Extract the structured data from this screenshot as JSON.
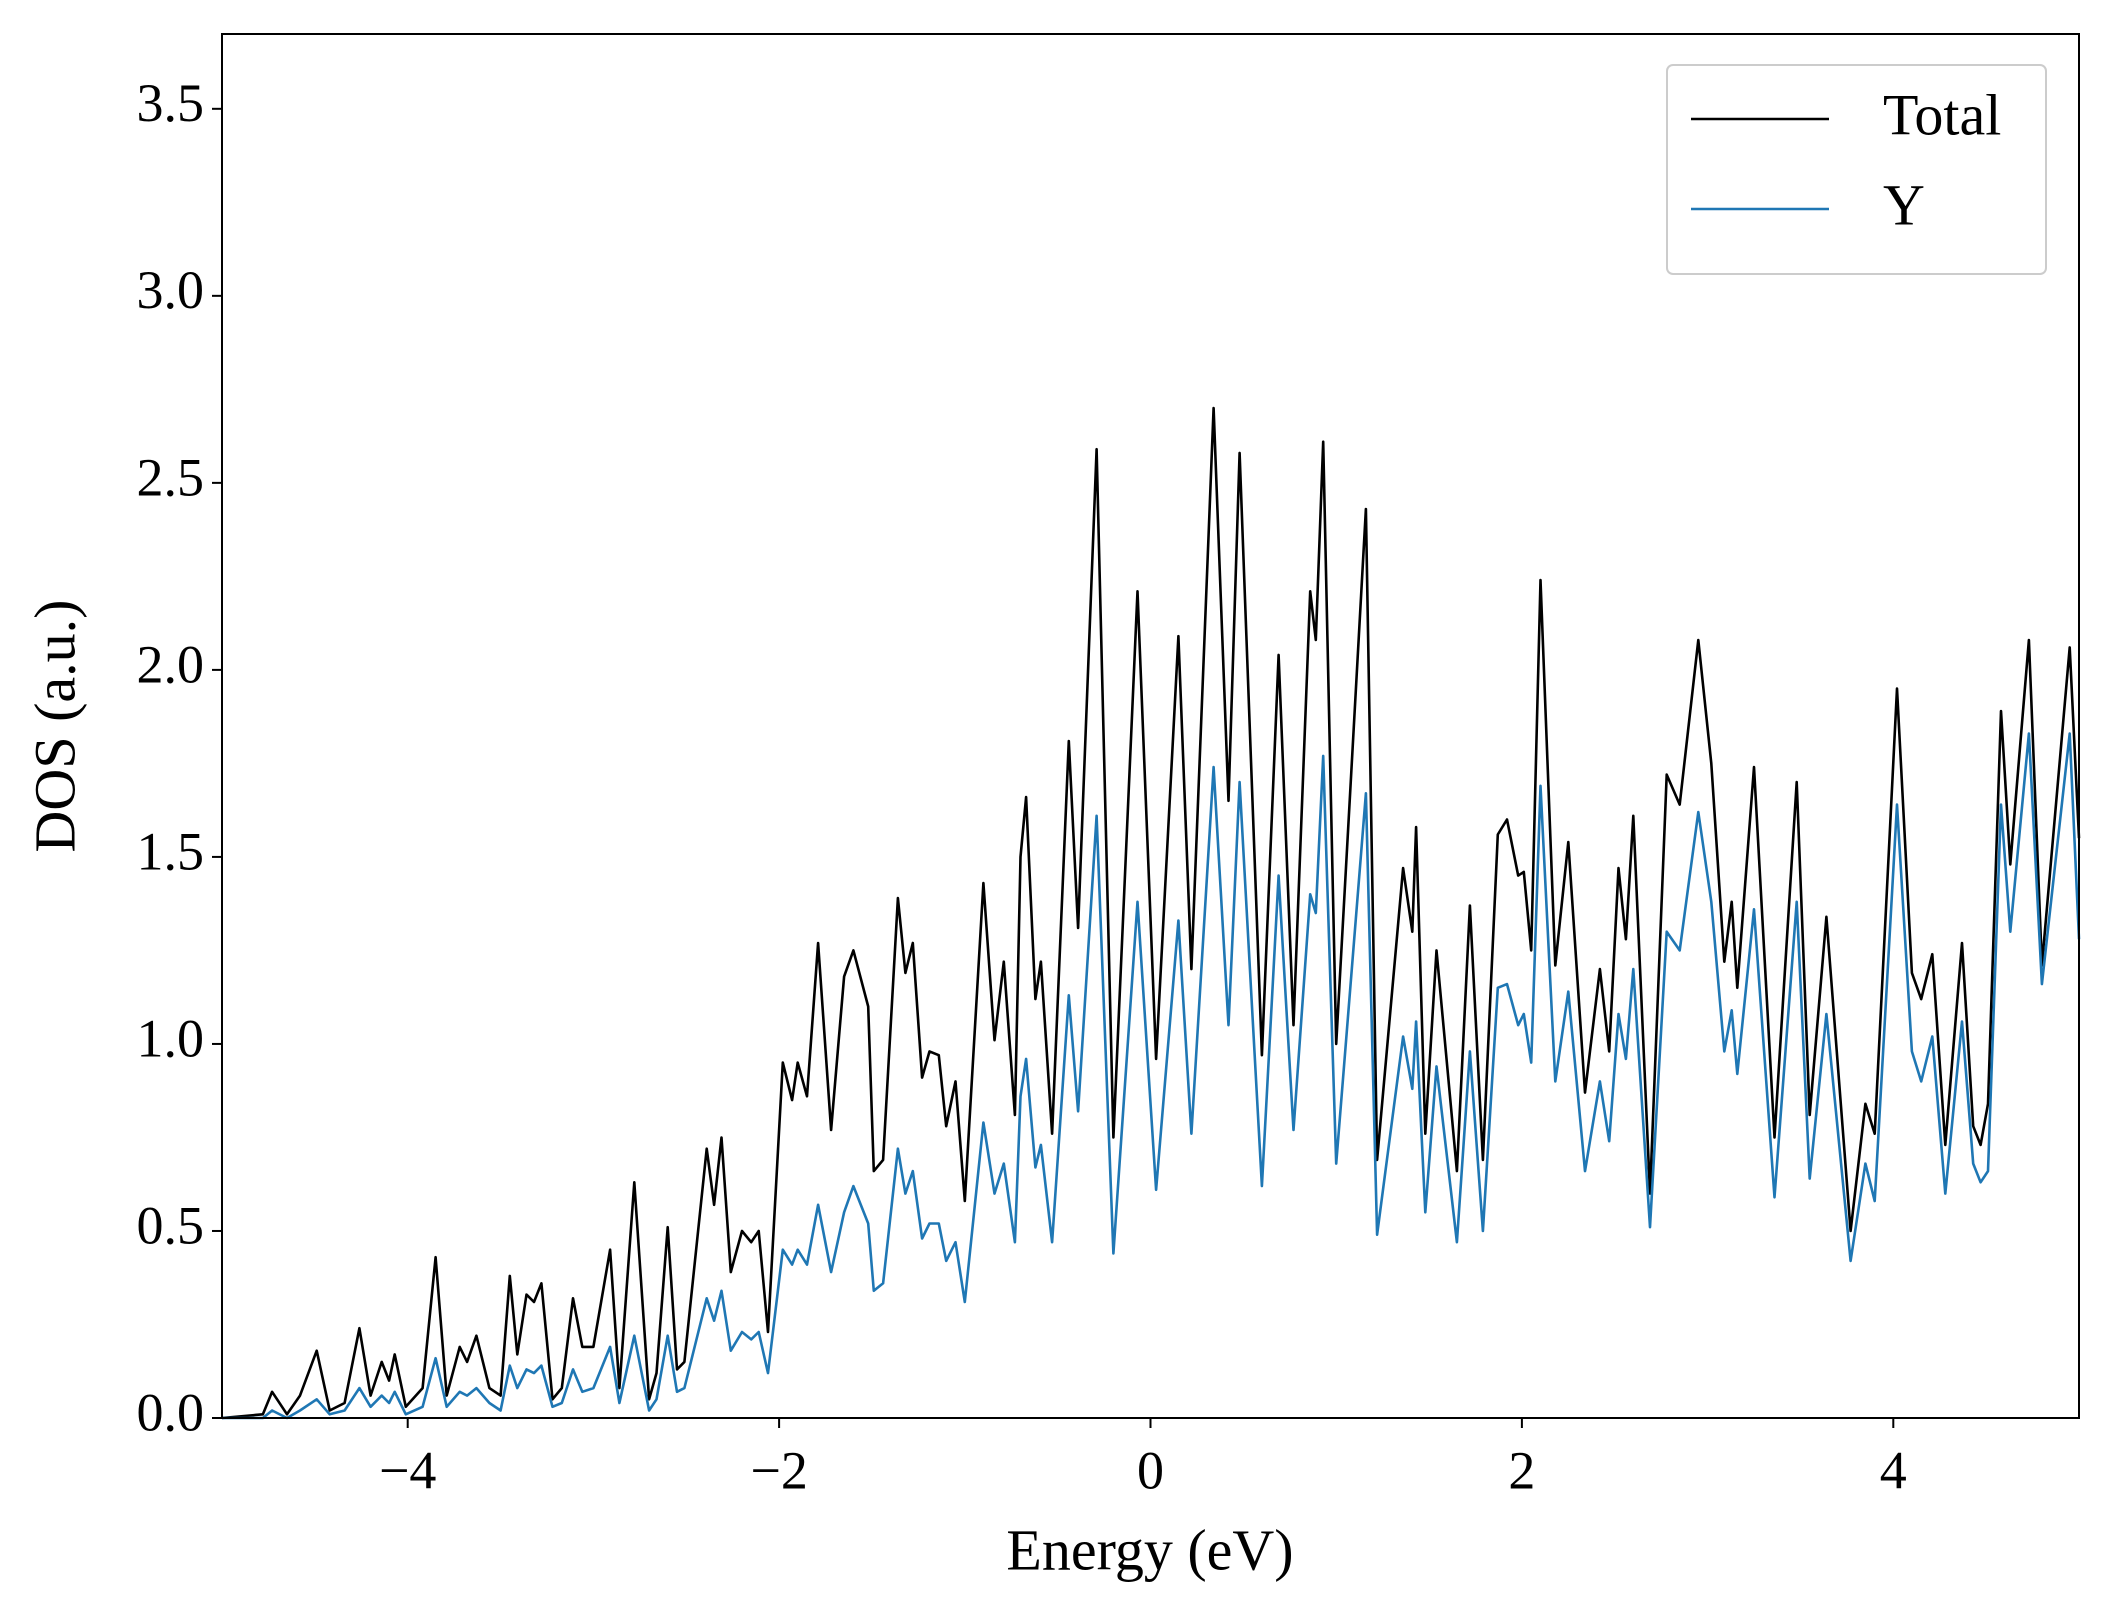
{
  "chart_data": {
    "type": "line",
    "xlabel": "Energy (eV)",
    "ylabel": "DOS (a.u.)",
    "xlim": [
      -5,
      5
    ],
    "ylim": [
      0,
      3.7
    ],
    "xticks": [
      {
        "value": -4,
        "label": "−4"
      },
      {
        "value": -2,
        "label": "−2"
      },
      0,
      2,
      4
    ],
    "yticks": [
      {
        "value": 0,
        "label": "0.0"
      },
      0.5,
      {
        "value": 1,
        "label": "1.0"
      },
      1.5,
      {
        "value": 2,
        "label": "2.0"
      },
      2.5,
      {
        "value": 3,
        "label": "3.0"
      },
      3.5
    ],
    "legend": "upper right",
    "x": [
      -5.0,
      -4.78,
      -4.73,
      -4.65,
      -4.58,
      -4.49,
      -4.42,
      -4.34,
      -4.26,
      -4.2,
      -4.14,
      -4.1,
      -4.07,
      -4.01,
      -3.92,
      -3.85,
      -3.79,
      -3.72,
      -3.68,
      -3.63,
      -3.56,
      -3.5,
      -3.45,
      -3.41,
      -3.36,
      -3.32,
      -3.28,
      -3.22,
      -3.17,
      -3.11,
      -3.06,
      -3.0,
      -2.91,
      -2.86,
      -2.78,
      -2.7,
      -2.66,
      -2.6,
      -2.55,
      -2.51,
      -2.39,
      -2.35,
      -2.31,
      -2.26,
      -2.2,
      -2.15,
      -2.11,
      -2.06,
      -1.98,
      -1.93,
      -1.9,
      -1.85,
      -1.79,
      -1.72,
      -1.65,
      -1.6,
      -1.52,
      -1.49,
      -1.44,
      -1.36,
      -1.32,
      -1.28,
      -1.23,
      -1.19,
      -1.14,
      -1.1,
      -1.05,
      -1.0,
      -0.9,
      -0.84,
      -0.79,
      -0.73,
      -0.7,
      -0.67,
      -0.62,
      -0.59,
      -0.53,
      -0.44,
      -0.39,
      -0.29,
      -0.2,
      -0.07,
      0.03,
      0.15,
      0.22,
      0.34,
      0.42,
      0.48,
      0.6,
      0.69,
      0.77,
      0.86,
      0.89,
      0.93,
      1.0,
      1.16,
      1.22,
      1.36,
      1.41,
      1.43,
      1.48,
      1.54,
      1.65,
      1.72,
      1.79,
      1.87,
      1.92,
      1.98,
      2.01,
      2.05,
      2.1,
      2.18,
      2.25,
      2.34,
      2.42,
      2.47,
      2.52,
      2.56,
      2.6,
      2.69,
      2.78,
      2.85,
      2.95,
      3.02,
      3.09,
      3.13,
      3.16,
      3.25,
      3.36,
      3.48,
      3.55,
      3.64,
      3.77,
      3.85,
      3.9,
      4.02,
      4.1,
      4.15,
      4.21,
      4.28,
      4.37,
      4.43,
      4.47,
      4.51,
      4.58,
      4.63,
      4.73,
      4.8,
      4.95,
      5.0
    ],
    "series": [
      {
        "name": "Total",
        "color": "#000000",
        "values": [
          0,
          0.01,
          0.07,
          0.01,
          0.06,
          0.18,
          0.02,
          0.04,
          0.24,
          0.06,
          0.15,
          0.1,
          0.17,
          0.03,
          0.08,
          0.43,
          0.06,
          0.19,
          0.15,
          0.22,
          0.08,
          0.06,
          0.38,
          0.17,
          0.33,
          0.31,
          0.36,
          0.05,
          0.08,
          0.32,
          0.19,
          0.19,
          0.45,
          0.08,
          0.63,
          0.05,
          0.12,
          0.51,
          0.13,
          0.15,
          0.72,
          0.57,
          0.75,
          0.39,
          0.5,
          0.47,
          0.5,
          0.23,
          0.95,
          0.85,
          0.95,
          0.86,
          1.27,
          0.77,
          1.18,
          1.25,
          1.1,
          0.66,
          0.69,
          1.39,
          1.19,
          1.27,
          0.91,
          0.98,
          0.97,
          0.78,
          0.9,
          0.58,
          1.43,
          1.01,
          1.22,
          0.81,
          1.5,
          1.66,
          1.12,
          1.22,
          0.76,
          1.81,
          1.31,
          2.59,
          0.75,
          2.21,
          0.96,
          2.09,
          1.2,
          2.7,
          1.65,
          2.58,
          0.97,
          2.04,
          1.05,
          2.21,
          2.08,
          2.61,
          1.0,
          2.43,
          0.69,
          1.47,
          1.3,
          1.58,
          0.76,
          1.25,
          0.66,
          1.37,
          0.69,
          1.56,
          1.6,
          1.45,
          1.46,
          1.25,
          2.24,
          1.21,
          1.54,
          0.87,
          1.2,
          0.98,
          1.47,
          1.28,
          1.61,
          0.6,
          1.72,
          1.64,
          2.08,
          1.75,
          1.22,
          1.38,
          1.15,
          1.74,
          0.75,
          1.7,
          0.81,
          1.34,
          0.5,
          0.84,
          0.76,
          1.95,
          1.19,
          1.12,
          1.24,
          0.73,
          1.27,
          0.78,
          0.73,
          0.84,
          1.89,
          1.48,
          2.08,
          1.21,
          2.06,
          1.55
        ]
      },
      {
        "name": "Y",
        "color": "#1f77b4",
        "values": [
          0,
          0.0,
          0.02,
          0.0,
          0.02,
          0.05,
          0.01,
          0.02,
          0.08,
          0.03,
          0.06,
          0.04,
          0.07,
          0.01,
          0.03,
          0.16,
          0.03,
          0.07,
          0.06,
          0.08,
          0.04,
          0.02,
          0.14,
          0.08,
          0.13,
          0.12,
          0.14,
          0.03,
          0.04,
          0.13,
          0.07,
          0.08,
          0.19,
          0.04,
          0.22,
          0.02,
          0.05,
          0.22,
          0.07,
          0.08,
          0.32,
          0.26,
          0.34,
          0.18,
          0.23,
          0.21,
          0.23,
          0.12,
          0.45,
          0.41,
          0.45,
          0.41,
          0.57,
          0.39,
          0.55,
          0.62,
          0.52,
          0.34,
          0.36,
          0.72,
          0.6,
          0.66,
          0.48,
          0.52,
          0.52,
          0.42,
          0.47,
          0.31,
          0.79,
          0.6,
          0.68,
          0.47,
          0.86,
          0.96,
          0.67,
          0.73,
          0.47,
          1.13,
          0.82,
          1.61,
          0.44,
          1.38,
          0.61,
          1.33,
          0.76,
          1.74,
          1.05,
          1.7,
          0.62,
          1.45,
          0.77,
          1.4,
          1.35,
          1.77,
          0.68,
          1.67,
          0.49,
          1.02,
          0.88,
          1.06,
          0.55,
          0.94,
          0.47,
          0.98,
          0.5,
          1.15,
          1.16,
          1.05,
          1.08,
          0.95,
          1.69,
          0.9,
          1.14,
          0.66,
          0.9,
          0.74,
          1.08,
          0.96,
          1.2,
          0.51,
          1.3,
          1.25,
          1.62,
          1.38,
          0.98,
          1.09,
          0.92,
          1.36,
          0.59,
          1.38,
          0.64,
          1.08,
          0.42,
          0.68,
          0.58,
          1.64,
          0.98,
          0.9,
          1.02,
          0.6,
          1.06,
          0.68,
          0.63,
          0.66,
          1.64,
          1.3,
          1.83,
          1.16,
          1.83,
          1.28
        ]
      }
    ]
  }
}
